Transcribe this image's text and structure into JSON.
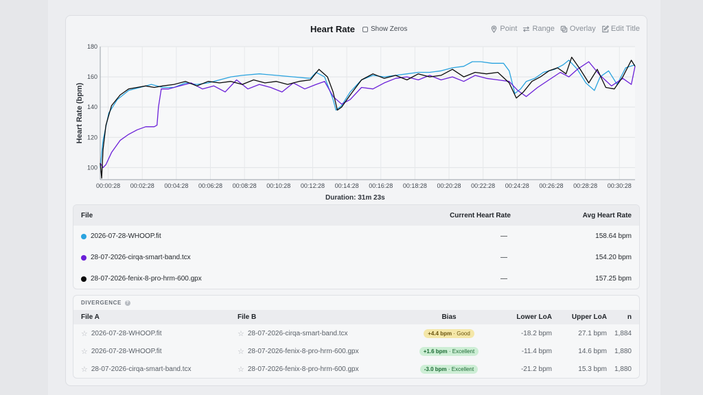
{
  "chart": {
    "title": "Heart Rate",
    "show_zeros_label": "Show Zeros",
    "duration_label": "Duration: 31m 23s"
  },
  "toolbar": {
    "point_label": "Point",
    "range_label": "Range",
    "overlay_label": "Overlay",
    "edit_title_label": "Edit Title"
  },
  "files_table": {
    "headers": {
      "file": "File",
      "current": "Current Heart Rate",
      "avg": "Avg Heart Rate"
    },
    "rows": [
      {
        "name": "2026-07-28-WHOOP.fit",
        "color": "#2aa3df",
        "current": "—",
        "avg": "158.64 bpm"
      },
      {
        "name": "28-07-2026-cirqa-smart-band.tcx",
        "color": "#6a1fd8",
        "current": "—",
        "avg": "154.20 bpm"
      },
      {
        "name": "28-07-2026-fenix-8-pro-hrm-600.gpx",
        "color": "#0b0b0b",
        "current": "—",
        "avg": "157.25 bpm"
      }
    ]
  },
  "divergence": {
    "title": "DIVERGENCE",
    "headers": {
      "file_a": "File A",
      "file_b": "File B",
      "bias": "Bias",
      "lower": "Lower LoA",
      "upper": "Upper LoA",
      "n": "n"
    },
    "rows": [
      {
        "file_a": "2026-07-28-WHOOP.fit",
        "file_b": "28-07-2026-cirqa-smart-band.tcx",
        "bias_value": "+4.4 bpm",
        "bias_rating": "Good",
        "lower": "-18.2 bpm",
        "upper": "27.1 bpm",
        "n": "1,884"
      },
      {
        "file_a": "2026-07-28-WHOOP.fit",
        "file_b": "28-07-2026-fenix-8-pro-hrm-600.gpx",
        "bias_value": "+1.6 bpm",
        "bias_rating": "Excellent",
        "lower": "-11.4 bpm",
        "upper": "14.6 bpm",
        "n": "1,880"
      },
      {
        "file_a": "28-07-2026-cirqa-smart-band.tcx",
        "file_b": "28-07-2026-fenix-8-pro-hrm-600.gpx",
        "bias_value": "-3.0 bpm",
        "bias_rating": "Excellent",
        "lower": "-21.2 bpm",
        "upper": "15.3 bpm",
        "n": "1,880"
      }
    ]
  },
  "chart_data": {
    "type": "line",
    "title": "Heart Rate",
    "xlabel": "Duration: 31m 23s",
    "ylabel": "Heart Rate (bpm)",
    "ylim": [
      92,
      180
    ],
    "yticks": [
      100,
      120,
      140,
      160,
      180
    ],
    "xlim": [
      0,
      1883
    ],
    "xticks": [
      "00:00:28",
      "00:02:28",
      "00:04:28",
      "00:06:28",
      "00:08:28",
      "00:10:28",
      "00:12:28",
      "00:14:28",
      "00:16:28",
      "00:18:28",
      "00:20:28",
      "00:22:28",
      "00:24:28",
      "00:26:28",
      "00:28:28",
      "00:30:28"
    ],
    "xtick_seconds": [
      28,
      148,
      268,
      388,
      508,
      628,
      748,
      868,
      988,
      1108,
      1228,
      1348,
      1468,
      1588,
      1708,
      1828
    ],
    "grid": true,
    "series": [
      {
        "color": "#2aa3df",
        "x": [
          0,
          10,
          30,
          60,
          100,
          140,
          180,
          220,
          260,
          300,
          340,
          380,
          420,
          460,
          500,
          560,
          620,
          680,
          740,
          760,
          790,
          820,
          830,
          850,
          880,
          920,
          960,
          1000,
          1040,
          1080,
          1120,
          1160,
          1200,
          1240,
          1280,
          1310,
          1340,
          1380,
          1420,
          1440,
          1460,
          1480,
          1500,
          1530,
          1560,
          1600,
          1630,
          1650,
          1680,
          1710,
          1740,
          1760,
          1790,
          1820,
          1850,
          1883
        ],
        "y": [
          100,
          118,
          136,
          145,
          151,
          153,
          155,
          153,
          153,
          156,
          155,
          156,
          158,
          160,
          161,
          162,
          161,
          160,
          159,
          163,
          160,
          145,
          138,
          141,
          150,
          158,
          161,
          160,
          161,
          162,
          163,
          163,
          164,
          166,
          167,
          170,
          170,
          169,
          169,
          164,
          149,
          152,
          157,
          159,
          163,
          165,
          168,
          171,
          165,
          156,
          151,
          160,
          164,
          155,
          166,
          168
        ]
      },
      {
        "color": "#6a1fd8",
        "x": [
          0,
          10,
          20,
          40,
          70,
          100,
          130,
          160,
          190,
          200,
          205,
          215,
          240,
          280,
          320,
          360,
          400,
          440,
          480,
          520,
          560,
          600,
          640,
          680,
          720,
          760,
          790,
          820,
          850,
          880,
          920,
          960,
          1000,
          1040,
          1080,
          1120,
          1160,
          1200,
          1240,
          1280,
          1320,
          1360,
          1400,
          1440,
          1470,
          1500,
          1540,
          1580,
          1620,
          1650,
          1680,
          1720,
          1760,
          1800,
          1840,
          1870,
          1883
        ],
        "y": [
          103,
          100,
          102,
          110,
          118,
          122,
          125,
          127,
          127,
          128,
          140,
          152,
          152,
          154,
          156,
          152,
          154,
          150,
          158,
          152,
          155,
          153,
          150,
          156,
          152,
          155,
          157,
          147,
          142,
          145,
          153,
          152,
          156,
          159,
          160,
          158,
          161,
          158,
          160,
          157,
          161,
          159,
          158,
          157,
          151,
          147,
          153,
          158,
          163,
          160,
          165,
          170,
          161,
          154,
          159,
          155,
          167
        ]
      },
      {
        "color": "#0b0b0b",
        "x": [
          0,
          5,
          10,
          20,
          40,
          70,
          100,
          130,
          160,
          190,
          220,
          260,
          300,
          340,
          380,
          420,
          460,
          500,
          540,
          580,
          620,
          660,
          700,
          740,
          770,
          800,
          820,
          835,
          850,
          880,
          920,
          960,
          1000,
          1040,
          1080,
          1120,
          1160,
          1200,
          1240,
          1280,
          1320,
          1360,
          1400,
          1440,
          1465,
          1490,
          1520,
          1550,
          1580,
          1610,
          1640,
          1660,
          1690,
          1720,
          1750,
          1780,
          1810,
          1840,
          1870,
          1883
        ],
        "y": [
          103,
          93,
          112,
          128,
          141,
          148,
          152,
          153,
          154,
          153,
          154,
          155,
          157,
          154,
          157,
          156,
          157,
          155,
          158,
          156,
          157,
          155,
          157,
          158,
          165,
          160,
          150,
          138,
          140,
          148,
          158,
          162,
          159,
          161,
          158,
          162,
          160,
          161,
          165,
          160,
          163,
          162,
          163,
          156,
          146,
          150,
          157,
          160,
          164,
          166,
          162,
          173,
          165,
          156,
          165,
          153,
          152,
          160,
          171,
          167
        ]
      }
    ]
  }
}
